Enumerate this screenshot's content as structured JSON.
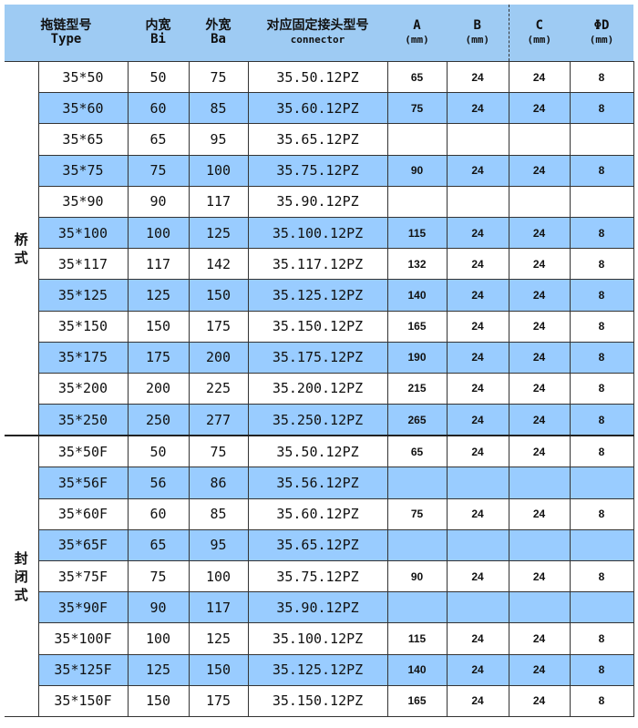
{
  "header": {
    "type": [
      "拖链型号",
      "Type"
    ],
    "bi": [
      "内宽",
      "Bi"
    ],
    "ba": [
      "外宽",
      "Ba"
    ],
    "connector": [
      "对应固定接头型号",
      "connector"
    ],
    "a": [
      "A",
      "(mm)"
    ],
    "b": [
      "B",
      "(mm)"
    ],
    "c": [
      "C",
      "(mm)"
    ],
    "d": [
      "ΦD",
      "(mm)"
    ]
  },
  "groups": [
    {
      "label": "桥式",
      "rows": [
        [
          "35*50",
          "50",
          "75",
          "35.50.12PZ",
          "65",
          "24",
          "24",
          "8"
        ],
        [
          "35*60",
          "60",
          "85",
          "35.60.12PZ",
          "75",
          "24",
          "24",
          "8"
        ],
        [
          "35*65",
          "65",
          "95",
          "35.65.12PZ",
          "",
          "",
          "",
          ""
        ],
        [
          "35*75",
          "75",
          "100",
          "35.75.12PZ",
          "90",
          "24",
          "24",
          "8"
        ],
        [
          "35*90",
          "90",
          "117",
          "35.90.12PZ",
          "",
          "",
          "",
          ""
        ],
        [
          "35*100",
          "100",
          "125",
          "35.100.12PZ",
          "115",
          "24",
          "24",
          "8"
        ],
        [
          "35*117",
          "117",
          "142",
          "35.117.12PZ",
          "132",
          "24",
          "24",
          "8"
        ],
        [
          "35*125",
          "125",
          "150",
          "35.125.12PZ",
          "140",
          "24",
          "24",
          "8"
        ],
        [
          "35*150",
          "150",
          "175",
          "35.150.12PZ",
          "165",
          "24",
          "24",
          "8"
        ],
        [
          "35*175",
          "175",
          "200",
          "35.175.12PZ",
          "190",
          "24",
          "24",
          "8"
        ],
        [
          "35*200",
          "200",
          "225",
          "35.200.12PZ",
          "215",
          "24",
          "24",
          "8"
        ],
        [
          "35*250",
          "250",
          "277",
          "35.250.12PZ",
          "265",
          "24",
          "24",
          "8"
        ]
      ]
    },
    {
      "label": "封闭式",
      "rows": [
        [
          "35*50F",
          "50",
          "75",
          "35.50.12PZ",
          "65",
          "24",
          "24",
          "8"
        ],
        [
          "35*56F",
          "56",
          "86",
          "35.56.12PZ",
          "",
          "",
          "",
          ""
        ],
        [
          "35*60F",
          "60",
          "85",
          "35.60.12PZ",
          "75",
          "24",
          "24",
          "8"
        ],
        [
          "35*65F",
          "65",
          "95",
          "35.65.12PZ",
          "",
          "",
          "",
          ""
        ],
        [
          "35*75F",
          "75",
          "100",
          "35.75.12PZ",
          "90",
          "24",
          "24",
          "8"
        ],
        [
          "35*90F",
          "90",
          "117",
          "35.90.12PZ",
          "",
          "",
          "",
          ""
        ],
        [
          "35*100F",
          "100",
          "125",
          "35.100.12PZ",
          "115",
          "24",
          "24",
          "8"
        ],
        [
          "35*125F",
          "125",
          "150",
          "35.125.12PZ",
          "140",
          "24",
          "24",
          "8"
        ],
        [
          "35*150F",
          "150",
          "175",
          "35.150.12PZ",
          "165",
          "24",
          "24",
          "8"
        ]
      ]
    }
  ],
  "colors": {
    "header": "#9ecbf3",
    "row_alt": "#99ccff"
  }
}
